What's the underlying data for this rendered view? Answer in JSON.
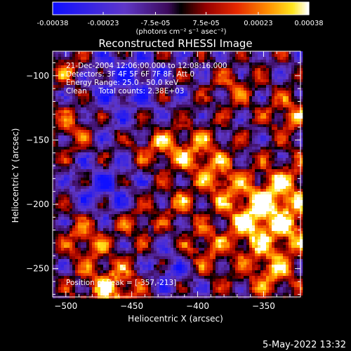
{
  "chart_data": {
    "type": "heatmap",
    "title": "Reconstructed RHESSI Image",
    "xlabel": "Heliocentric X (arcsec)",
    "ylabel": "Heliocentric Y (arcsec)",
    "xlim": [
      -510,
      -322
    ],
    "ylim": [
      -272,
      -81
    ],
    "x_ticks": [
      -500,
      -450,
      -400,
      -350
    ],
    "y_ticks": [
      -100,
      -150,
      -200,
      -250
    ],
    "grid": false,
    "colorbar": {
      "location": "top",
      "range": [
        -0.00038,
        0.00038
      ],
      "tick_values": [
        -0.00038,
        -0.00023,
        -7.5e-05,
        7.5e-05,
        0.00023,
        0.00038
      ],
      "tick_labels": [
        "-0.00038",
        "-0.00023",
        "-7.5e-05",
        "7.5e-05",
        "0.00023",
        "0.00038"
      ],
      "unit_label": "(photons cm⁻² s⁻¹ asec⁻²)"
    },
    "annotations": [
      "21-Dec-2004 12:06:00.000 to 12:08:16.000",
      "Detectors: 3F 4F 5F 6F 7F 8F, Att 0",
      "Energy Range: 25.0 - 50.0 keV",
      "Clean     Total counts: 2.38E+03"
    ],
    "peak_label": "Position of Peak = [-357,-213]",
    "peak": {
      "x": -357,
      "y": -213
    },
    "hot_regions": [
      {
        "x": -357,
        "y": -213,
        "sigma": 14,
        "amp": 1.0
      },
      {
        "x": -335,
        "y": -190,
        "sigma": 16,
        "amp": 0.85
      },
      {
        "x": -400,
        "y": -160,
        "sigma": 14,
        "amp": 0.7
      },
      {
        "x": -430,
        "y": -155,
        "sigma": 11,
        "amp": 0.6
      },
      {
        "x": -465,
        "y": -265,
        "sigma": 16,
        "amp": 0.8
      },
      {
        "x": -500,
        "y": -95,
        "sigma": 10,
        "amp": 0.55
      },
      {
        "x": -495,
        "y": -140,
        "sigma": 11,
        "amp": 0.5
      },
      {
        "x": -485,
        "y": -225,
        "sigma": 12,
        "amp": 0.6
      },
      {
        "x": -445,
        "y": -215,
        "sigma": 10,
        "amp": 0.5
      },
      {
        "x": -345,
        "y": -250,
        "sigma": 16,
        "amp": 0.7
      },
      {
        "x": -395,
        "y": -235,
        "sigma": 13,
        "amp": 0.6
      },
      {
        "x": -330,
        "y": -130,
        "sigma": 12,
        "amp": 0.6
      },
      {
        "x": -372,
        "y": -110,
        "sigma": 10,
        "amp": 0.5
      },
      {
        "x": -380,
        "y": -185,
        "sigma": 12,
        "amp": 0.65
      },
      {
        "x": -415,
        "y": -200,
        "sigma": 9,
        "amp": 0.5
      },
      {
        "x": -325,
        "y": -220,
        "sigma": 10,
        "amp": 0.6
      }
    ],
    "cold_regions": [
      {
        "x": -455,
        "y": -105,
        "sigma": 20,
        "amp": 0.55
      },
      {
        "x": -470,
        "y": -190,
        "sigma": 16,
        "amp": 0.45
      },
      {
        "x": -420,
        "y": -250,
        "sigma": 14,
        "amp": 0.45
      }
    ]
  },
  "footer": {
    "timestamp": "5-May-2022 13:32"
  }
}
